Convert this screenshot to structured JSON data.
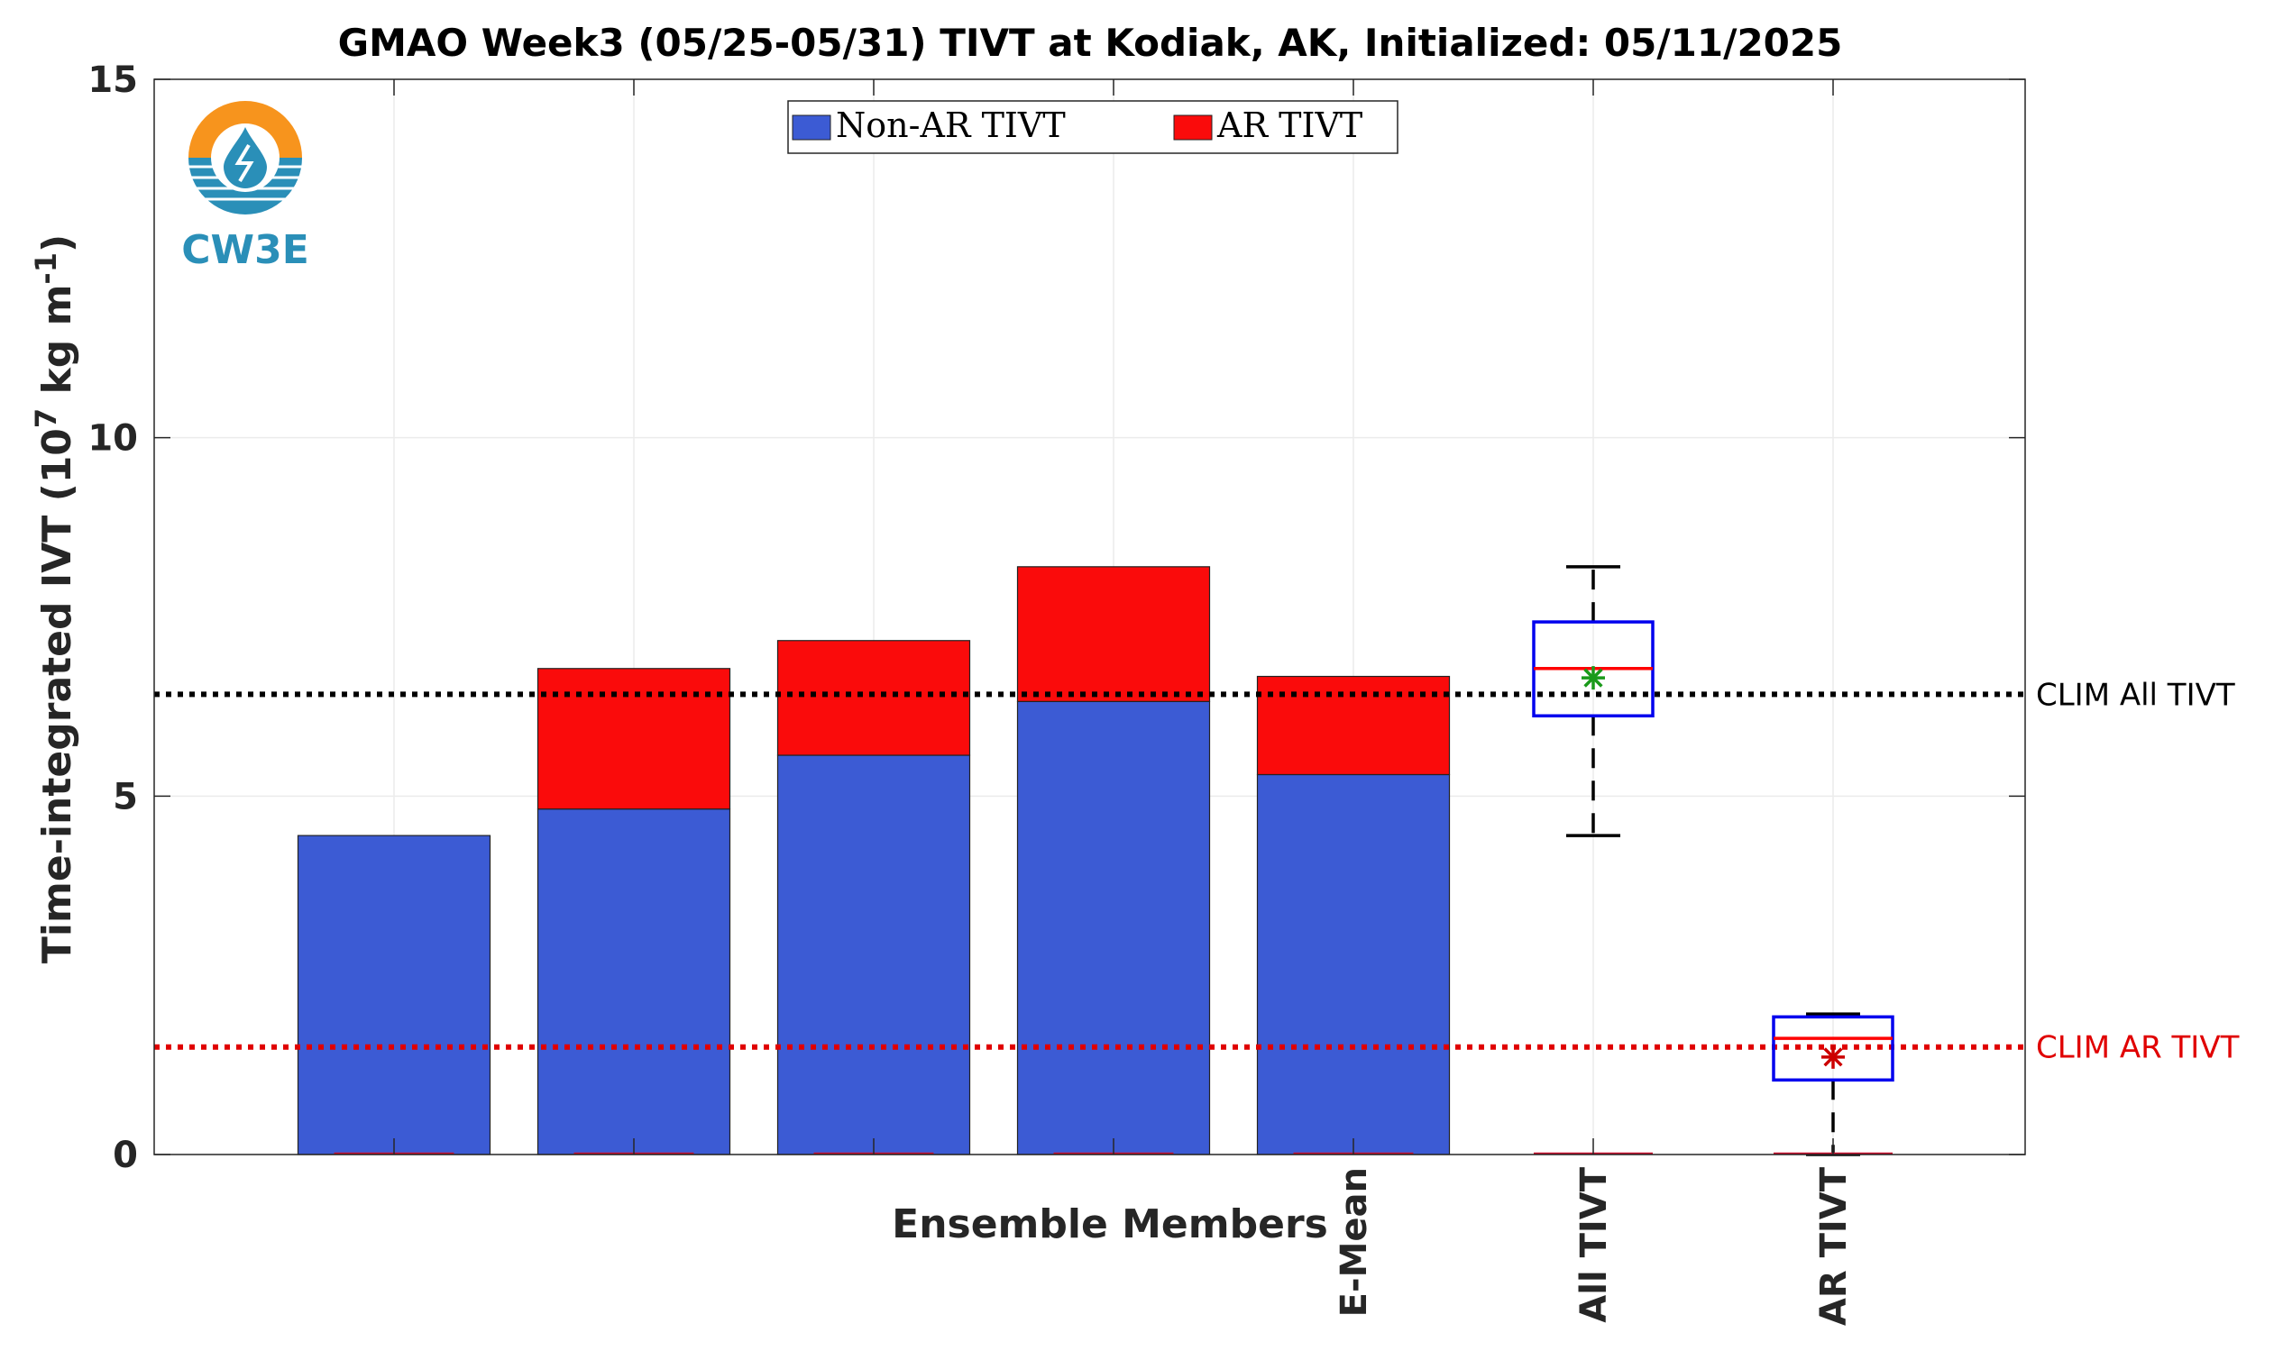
{
  "chart_data": {
    "type": "bar",
    "title": "GMAO Week3 (05/25-05/31) TIVT at Kodiak, AK, Initialized: 05/11/2025",
    "xlabel": "Ensemble Members",
    "ylabel_main": "Time-integrated IVT (10",
    "ylabel_exp": "7",
    "ylabel_mid": " kg m",
    "ylabel_exp2": "-1",
    "ylabel_end": ")",
    "ylim": [
      0,
      15
    ],
    "yticks": [
      0,
      5,
      10,
      15
    ],
    "grid": true,
    "legend_position": "top-center",
    "categories": [
      "",
      "",
      "",
      "",
      "E-Mean"
    ],
    "series": [
      {
        "name": "Non-AR TIVT",
        "color": "#3c5bd4",
        "values": [
          4.45,
          4.82,
          5.57,
          6.32,
          5.3
        ]
      },
      {
        "name": "AR TIVT",
        "color": "#fa0b0b",
        "values": [
          0.0,
          1.96,
          1.6,
          1.88,
          1.37
        ]
      }
    ],
    "boxplots": [
      {
        "label": "All TIVT",
        "min": 4.45,
        "q1": 6.12,
        "median": 6.78,
        "q3": 7.43,
        "max": 8.2,
        "mean": 6.65,
        "box_color": "#0000ee",
        "median_color": "#ff0000",
        "mean_color": "#1a9a1a"
      },
      {
        "label": "AR TIVT",
        "min": 0.0,
        "q1": 1.04,
        "median": 1.62,
        "q3": 1.92,
        "max": 1.96,
        "mean": 1.36,
        "box_color": "#0000ee",
        "median_color": "#ff0000",
        "mean_color": "#cc0000"
      }
    ],
    "reference_lines": [
      {
        "label": "CLIM All TIVT",
        "value": 6.42,
        "color": "#000000"
      },
      {
        "label": "CLIM AR TIVT",
        "value": 1.5,
        "color": "#e00000"
      }
    ]
  },
  "logo": {
    "text": "CW3E",
    "colors": {
      "sun": "#f7941d",
      "water": "#2a8fb8"
    }
  }
}
